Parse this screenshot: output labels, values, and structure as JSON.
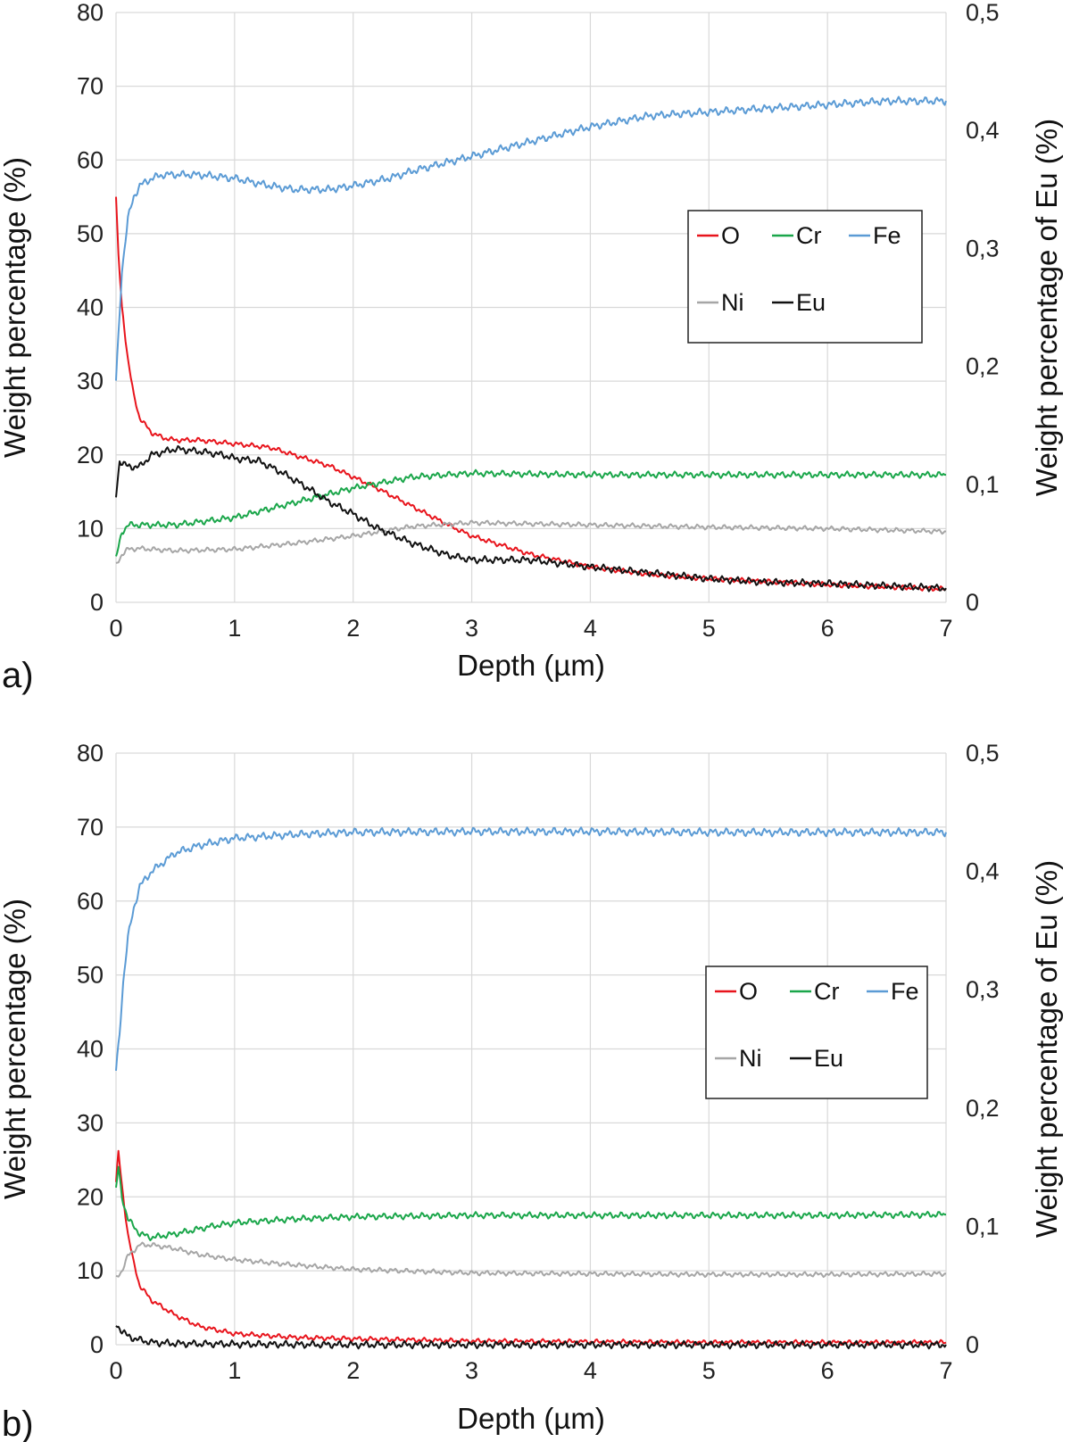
{
  "chart_data": [
    {
      "type": "line",
      "panel_label": "a)",
      "xlabel": "Depth (µm)",
      "ylabel": "Weight percentage (%)",
      "y2label": "Weight percentage of Eu (%)",
      "xlim": [
        0,
        7
      ],
      "ylim": [
        0,
        80
      ],
      "y2lim": [
        0,
        0.5
      ],
      "x_ticks": [
        0,
        1,
        2,
        3,
        4,
        5,
        6,
        7
      ],
      "x_tick_labels": [
        "0",
        "1",
        "2",
        "3",
        "4",
        "5",
        "6",
        "7"
      ],
      "y_ticks": [
        0,
        10,
        20,
        30,
        40,
        50,
        60,
        70,
        80
      ],
      "y_tick_labels": [
        "0",
        "10",
        "20",
        "30",
        "40",
        "50",
        "60",
        "70",
        "80"
      ],
      "y2_ticks": [
        0,
        0.1,
        0.2,
        0.3,
        0.4,
        0.5
      ],
      "y2_tick_labels": [
        "0",
        "0,1",
        "0,2",
        "0,3",
        "0,4",
        "0,5"
      ],
      "legend_position": "right-middle",
      "series": [
        {
          "name": "O",
          "color": "#e8141c",
          "axis": "left",
          "x": [
            0,
            0.02,
            0.05,
            0.1,
            0.15,
            0.2,
            0.3,
            0.4,
            0.5,
            0.7,
            1.0,
            1.3,
            1.5,
            1.8,
            2.0,
            2.2,
            2.5,
            2.8,
            3.0,
            3.5,
            4.0,
            4.5,
            5.0,
            5.5,
            6.0,
            6.5,
            7.0
          ],
          "values": [
            55,
            47,
            40,
            33,
            28,
            25,
            23,
            22.3,
            22,
            22,
            21.5,
            21,
            20,
            18.5,
            17,
            15.5,
            13,
            10.5,
            9,
            6.5,
            4.8,
            3.8,
            3.2,
            2.8,
            2.4,
            2.1,
            1.8
          ]
        },
        {
          "name": "Cr",
          "color": "#1aa64a",
          "axis": "left",
          "x": [
            0,
            0.05,
            0.1,
            0.2,
            0.5,
            1.0,
            1.5,
            2.0,
            2.5,
            3.0,
            4.0,
            5.0,
            6.0,
            7.0
          ],
          "values": [
            6,
            9.5,
            10.5,
            10.5,
            10.5,
            11.5,
            13.5,
            15.5,
            17,
            17.5,
            17.3,
            17.3,
            17.3,
            17.3
          ]
        },
        {
          "name": "Fe",
          "color": "#5b9bd5",
          "axis": "left",
          "x": [
            0,
            0.05,
            0.1,
            0.15,
            0.2,
            0.3,
            0.4,
            0.5,
            0.7,
            1.0,
            1.3,
            1.5,
            1.8,
            2.0,
            2.3,
            2.5,
            3.0,
            3.5,
            4.0,
            4.5,
            5.0,
            5.5,
            6.0,
            6.5,
            7.0
          ],
          "values": [
            30,
            45,
            52,
            55,
            56.5,
            57.5,
            58,
            58,
            58,
            57.5,
            56.5,
            56,
            56,
            56.5,
            57.5,
            58.5,
            60.5,
            62.5,
            64.5,
            66,
            66.5,
            67,
            67.5,
            68,
            68
          ]
        },
        {
          "name": "Ni",
          "color": "#a6a6a6",
          "axis": "left",
          "x": [
            0,
            0.05,
            0.1,
            0.2,
            0.5,
            1.0,
            1.5,
            2.0,
            2.5,
            3.0,
            4.0,
            5.0,
            6.0,
            7.0
          ],
          "values": [
            5,
            6.5,
            7.2,
            7.3,
            7,
            7.2,
            8,
            9,
            10.3,
            10.8,
            10.5,
            10.2,
            10,
            9.6
          ]
        },
        {
          "name": "Eu",
          "color": "#111111",
          "axis": "right",
          "x": [
            0,
            0.03,
            0.1,
            0.2,
            0.3,
            0.5,
            0.7,
            0.9,
            1.0,
            1.2,
            1.4,
            1.6,
            1.8,
            2.0,
            2.2,
            2.5,
            2.8,
            3.0,
            3.5,
            4.0,
            4.5,
            5.0,
            5.5,
            6.0,
            6.5,
            7.0
          ],
          "values": [
            0.09,
            0.12,
            0.115,
            0.115,
            0.125,
            0.13,
            0.128,
            0.125,
            0.122,
            0.12,
            0.11,
            0.098,
            0.085,
            0.075,
            0.063,
            0.05,
            0.04,
            0.036,
            0.036,
            0.03,
            0.025,
            0.02,
            0.017,
            0.016,
            0.014,
            0.012
          ]
        }
      ]
    },
    {
      "type": "line",
      "panel_label": "b)",
      "xlabel": "Depth (µm)",
      "ylabel": "Weight percentage (%)",
      "y2label": "Weight percentage of Eu (%)",
      "xlim": [
        0,
        7
      ],
      "ylim": [
        0,
        80
      ],
      "y2lim": [
        0,
        0.5
      ],
      "x_ticks": [
        0,
        1,
        2,
        3,
        4,
        5,
        6,
        7
      ],
      "x_tick_labels": [
        "0",
        "1",
        "2",
        "3",
        "4",
        "5",
        "6",
        "7"
      ],
      "y_ticks": [
        0,
        10,
        20,
        30,
        40,
        50,
        60,
        70,
        80
      ],
      "y_tick_labels": [
        "0",
        "10",
        "20",
        "30",
        "40",
        "50",
        "60",
        "70",
        "80"
      ],
      "y2_ticks": [
        0,
        0.1,
        0.2,
        0.3,
        0.4,
        0.5
      ],
      "y2_tick_labels": [
        "0",
        "0,1",
        "0,2",
        "0,3",
        "0,4",
        "0,5"
      ],
      "legend_position": "right-middle",
      "series": [
        {
          "name": "O",
          "color": "#e8141c",
          "axis": "left",
          "x": [
            0,
            0.02,
            0.04,
            0.06,
            0.1,
            0.15,
            0.2,
            0.3,
            0.5,
            0.7,
            1.0,
            1.5,
            2.0,
            3.0,
            4.0,
            5.0,
            6.0,
            7.0
          ],
          "values": [
            22,
            26,
            23,
            20,
            15,
            11,
            8,
            6,
            4,
            2.5,
            1.5,
            1,
            0.8,
            0.5,
            0.4,
            0.3,
            0.3,
            0.3
          ]
        },
        {
          "name": "Cr",
          "color": "#1aa64a",
          "axis": "left",
          "x": [
            0,
            0.02,
            0.05,
            0.1,
            0.2,
            0.3,
            0.5,
            0.8,
            1.0,
            1.5,
            2.0,
            3.0,
            4.0,
            5.0,
            6.0,
            7.0
          ],
          "values": [
            21,
            24,
            20,
            17,
            15,
            14.5,
            15,
            16,
            16.5,
            17,
            17.3,
            17.5,
            17.5,
            17.5,
            17.5,
            17.6
          ]
        },
        {
          "name": "Fe",
          "color": "#5b9bd5",
          "axis": "left",
          "x": [
            0,
            0.03,
            0.06,
            0.1,
            0.15,
            0.2,
            0.3,
            0.5,
            0.7,
            1.0,
            1.5,
            2.0,
            3.0,
            4.0,
            5.0,
            6.0,
            7.0
          ],
          "values": [
            37,
            42,
            49,
            55,
            59,
            62,
            64,
            66.5,
            67.5,
            68.5,
            69,
            69.3,
            69.4,
            69.4,
            69.3,
            69.3,
            69.3
          ]
        },
        {
          "name": "Ni",
          "color": "#a6a6a6",
          "axis": "left",
          "x": [
            0,
            0.05,
            0.1,
            0.2,
            0.3,
            0.5,
            0.7,
            1.0,
            1.5,
            2.0,
            3.0,
            4.0,
            5.0,
            6.0,
            7.0
          ],
          "values": [
            9,
            10,
            12,
            13.5,
            13.5,
            13,
            12.2,
            11.5,
            10.8,
            10.2,
            9.7,
            9.6,
            9.5,
            9.5,
            9.6
          ]
        },
        {
          "name": "Eu",
          "color": "#111111",
          "axis": "right",
          "x": [
            0,
            0.05,
            0.1,
            0.2,
            0.3,
            0.5,
            1.0,
            2.0,
            3.0,
            4.0,
            5.0,
            6.0,
            7.0
          ],
          "values": [
            0.017,
            0.012,
            0.007,
            0.004,
            0.002,
            0.001,
            0.0005,
            0,
            0,
            0,
            0,
            0,
            0
          ]
        }
      ]
    }
  ]
}
